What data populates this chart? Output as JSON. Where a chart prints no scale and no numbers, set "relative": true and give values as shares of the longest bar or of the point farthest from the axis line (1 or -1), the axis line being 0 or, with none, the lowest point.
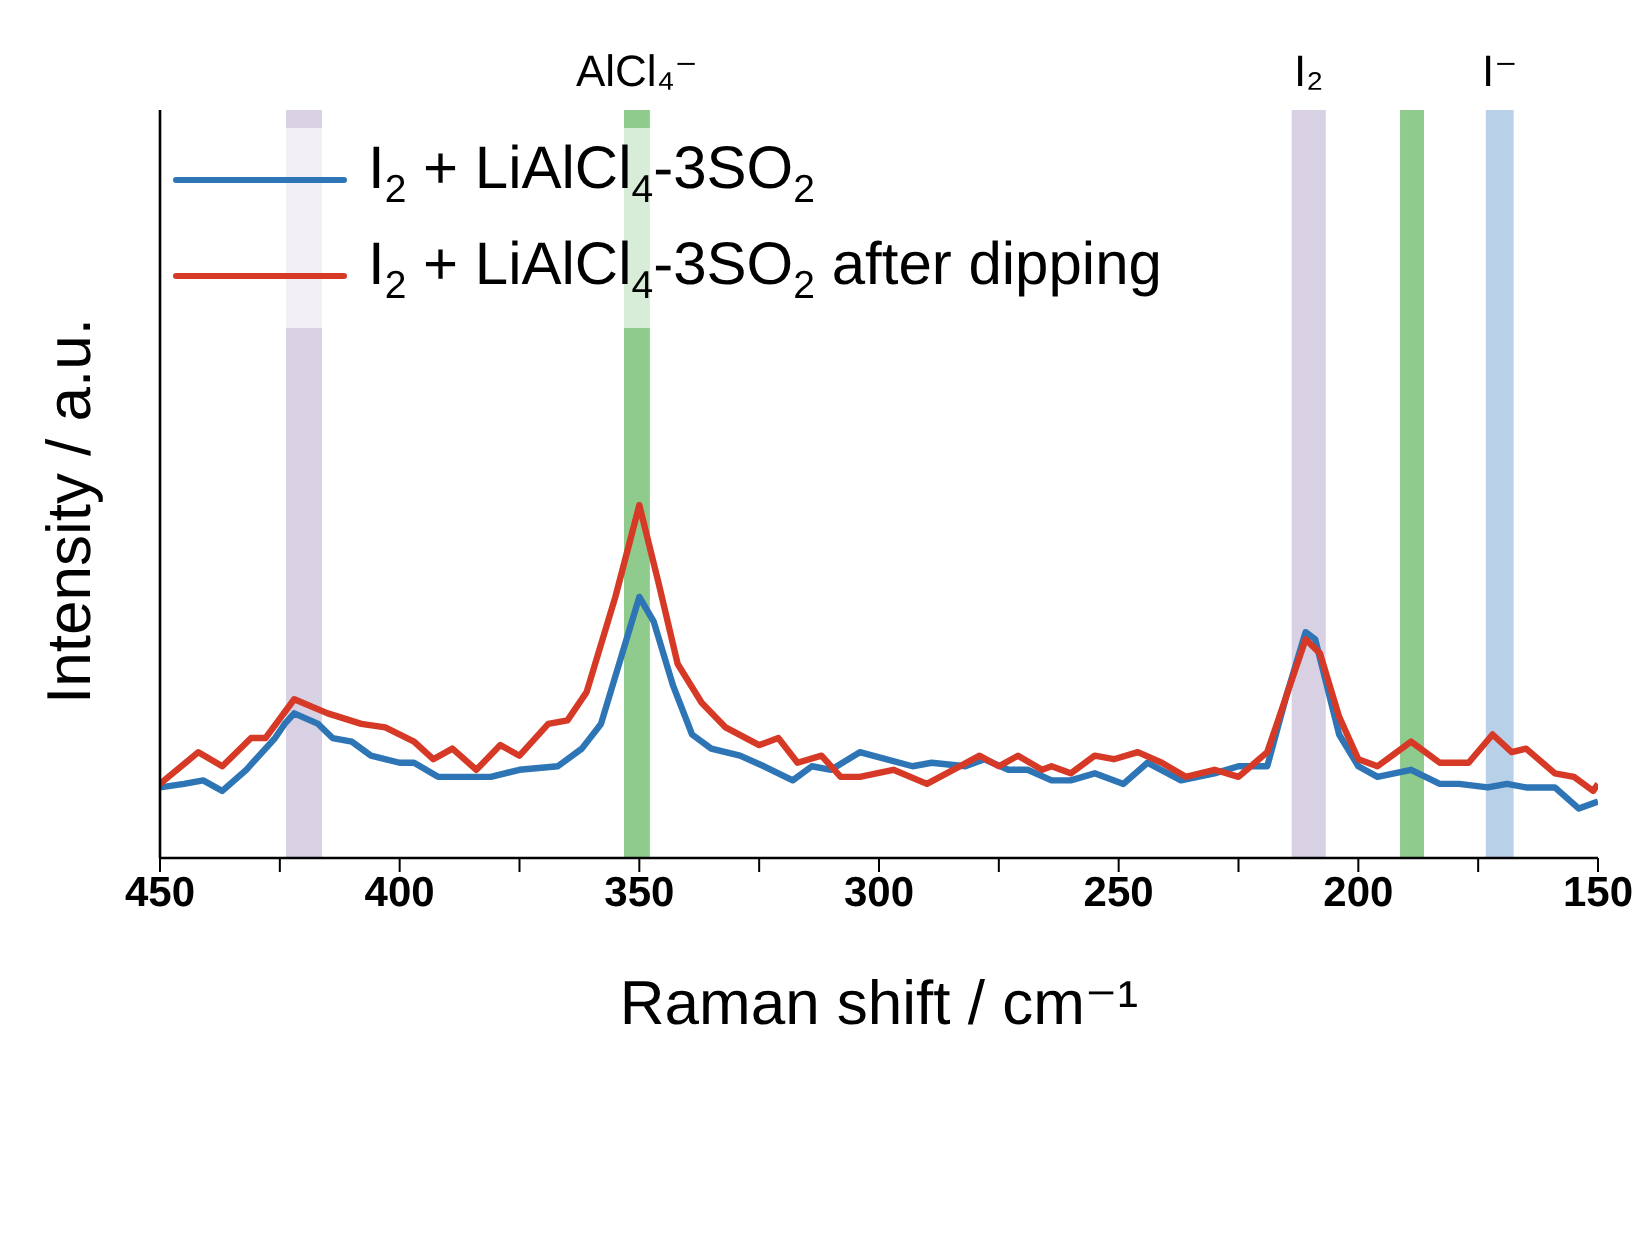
{
  "chart_data": {
    "type": "line",
    "xlabel": "Raman shift / cm⁻¹",
    "ylabel": "Intensity / a.u.",
    "relative": true,
    "legend": "top left",
    "marker": "none",
    "line_style": "solid",
    "grid": false,
    "xlim": [
      450,
      150
    ],
    "xticks": [
      450,
      {
        "value": 425,
        "label": null
      },
      400,
      {
        "value": 375,
        "label": null
      },
      350,
      {
        "value": 325,
        "label": null
      },
      300,
      {
        "value": 275,
        "label": null
      },
      250,
      {
        "value": 225,
        "label": null
      },
      200,
      {
        "value": 175,
        "label": null
      },
      150
    ],
    "bands": [
      {
        "axis": "x",
        "from": 423.7,
        "to": 416.2,
        "color": "#d8d0e3"
      },
      {
        "axis": "x",
        "from": 353.2,
        "to": 347.8,
        "color": "#8fcb8d",
        "label": "AlCl₄⁻"
      },
      {
        "axis": "x",
        "from": 213.9,
        "to": 206.8,
        "color": "#d8d0e3",
        "label": "I₂"
      },
      {
        "axis": "x",
        "from": 191.3,
        "to": 186.3,
        "color": "#8fcb8d"
      },
      {
        "axis": "x",
        "from": 173.4,
        "to": 167.6,
        "color": "#b8d0e8",
        "label": "I⁻"
      }
    ],
    "series": [
      {
        "name": "I$_{2}$ + LiAlCl$_{4}$-3SO$_{2}$",
        "color": "#2e75b6",
        "x": [
          450,
          445,
          441,
          437,
          432,
          426,
          424,
          422,
          417,
          414,
          410,
          406,
          400,
          397,
          392,
          381,
          375,
          367,
          362,
          358,
          354,
          350,
          347,
          343,
          339,
          335,
          329,
          324,
          318,
          314,
          310,
          304,
          293,
          289,
          282,
          278,
          273,
          269,
          264,
          260,
          255,
          249,
          244,
          237,
          230,
          225,
          219,
          215,
          211,
          209,
          204,
          200,
          196,
          189,
          183,
          179,
          173,
          169,
          165,
          159,
          154,
          150
        ],
        "values": [
          0.2,
          0.21,
          0.22,
          0.19,
          0.25,
          0.34,
          0.38,
          0.41,
          0.38,
          0.34,
          0.33,
          0.29,
          0.27,
          0.27,
          0.23,
          0.23,
          0.25,
          0.26,
          0.31,
          0.38,
          0.56,
          0.74,
          0.67,
          0.49,
          0.35,
          0.31,
          0.29,
          0.26,
          0.22,
          0.26,
          0.25,
          0.3,
          0.26,
          0.27,
          0.26,
          0.28,
          0.25,
          0.25,
          0.22,
          0.22,
          0.24,
          0.21,
          0.27,
          0.22,
          0.24,
          0.26,
          0.26,
          0.46,
          0.64,
          0.62,
          0.35,
          0.26,
          0.23,
          0.25,
          0.21,
          0.21,
          0.2,
          0.21,
          0.2,
          0.2,
          0.14,
          0.16
        ]
      },
      {
        "name": "I$_{2}$ + LiAlCl$_{4}$-3SO$_{2}$ after dipping",
        "color": "#d63a27",
        "x": [
          450,
          442,
          437,
          431,
          428,
          422,
          415,
          408,
          403,
          397,
          393,
          389,
          384,
          379,
          375,
          369,
          365,
          361,
          355,
          350,
          346,
          342,
          337,
          332,
          325,
          321,
          317,
          312,
          308,
          304,
          297,
          290,
          279,
          275,
          271,
          266,
          264,
          260,
          255,
          251,
          246,
          241,
          236,
          230,
          225,
          219,
          215,
          211,
          208,
          204,
          200,
          196,
          189,
          183,
          177,
          172,
          168,
          165,
          159,
          155,
          151,
          150
        ],
        "values": [
          0.21,
          0.3,
          0.26,
          0.34,
          0.34,
          0.45,
          0.41,
          0.38,
          0.37,
          0.33,
          0.28,
          0.31,
          0.25,
          0.32,
          0.29,
          0.38,
          0.39,
          0.47,
          0.74,
          1,
          0.78,
          0.55,
          0.44,
          0.37,
          0.32,
          0.34,
          0.27,
          0.29,
          0.23,
          0.23,
          0.25,
          0.21,
          0.29,
          0.26,
          0.29,
          0.25,
          0.26,
          0.24,
          0.29,
          0.28,
          0.3,
          0.27,
          0.23,
          0.25,
          0.23,
          0.3,
          0.46,
          0.62,
          0.58,
          0.4,
          0.28,
          0.26,
          0.33,
          0.27,
          0.27,
          0.35,
          0.3,
          0.31,
          0.24,
          0.23,
          0.19,
          0.21
        ]
      }
    ]
  }
}
